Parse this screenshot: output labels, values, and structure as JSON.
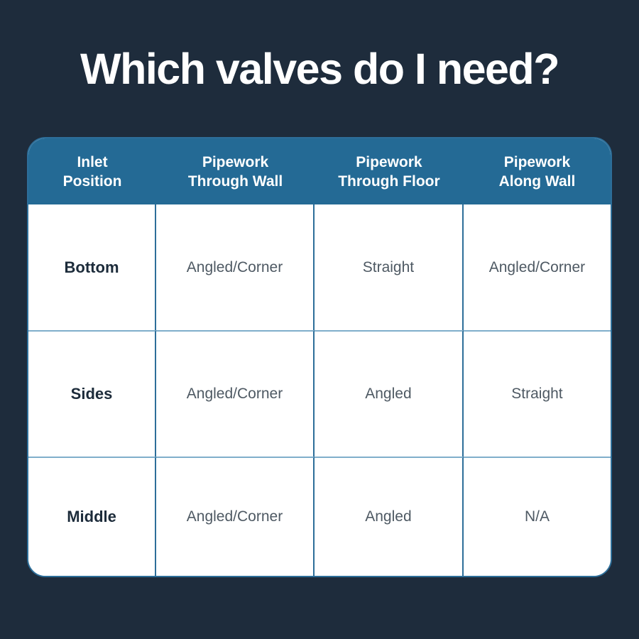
{
  "title": "Which valves do I need?",
  "colors": {
    "background": "#1E2C3C",
    "header_bg": "#246A95",
    "column_divider": "#2D6E99",
    "row_divider": "#7FAECB",
    "title_text": "#FFFFFF",
    "header_text": "#FFFFFF",
    "row_label_text": "#1C2B3A",
    "value_text": "#4E5963",
    "table_bg": "#FFFFFF"
  },
  "table": {
    "headers": [
      "Inlet\nPosition",
      "Pipework\nThrough Wall",
      "Pipework\nThrough Floor",
      "Pipework\nAlong Wall"
    ],
    "rows": [
      [
        "Bottom",
        "Angled/Corner",
        "Straight",
        "Angled/Corner"
      ],
      [
        "Sides",
        "Angled/Corner",
        "Angled",
        "Straight"
      ],
      [
        "Middle",
        "Angled/Corner",
        "Angled",
        "N/A"
      ]
    ]
  },
  "chart_data": {
    "type": "table",
    "title": "Which valves do I need?",
    "columns": [
      "Inlet Position",
      "Pipework Through Wall",
      "Pipework Through Floor",
      "Pipework Along Wall"
    ],
    "rows": [
      [
        "Bottom",
        "Angled/Corner",
        "Straight",
        "Angled/Corner"
      ],
      [
        "Sides",
        "Angled/Corner",
        "Angled",
        "Straight"
      ],
      [
        "Middle",
        "Angled/Corner",
        "Angled",
        "N/A"
      ]
    ],
    "layout_hints": {
      "header_position": "top",
      "first_column_is_row_label": true,
      "grid": "on"
    }
  }
}
